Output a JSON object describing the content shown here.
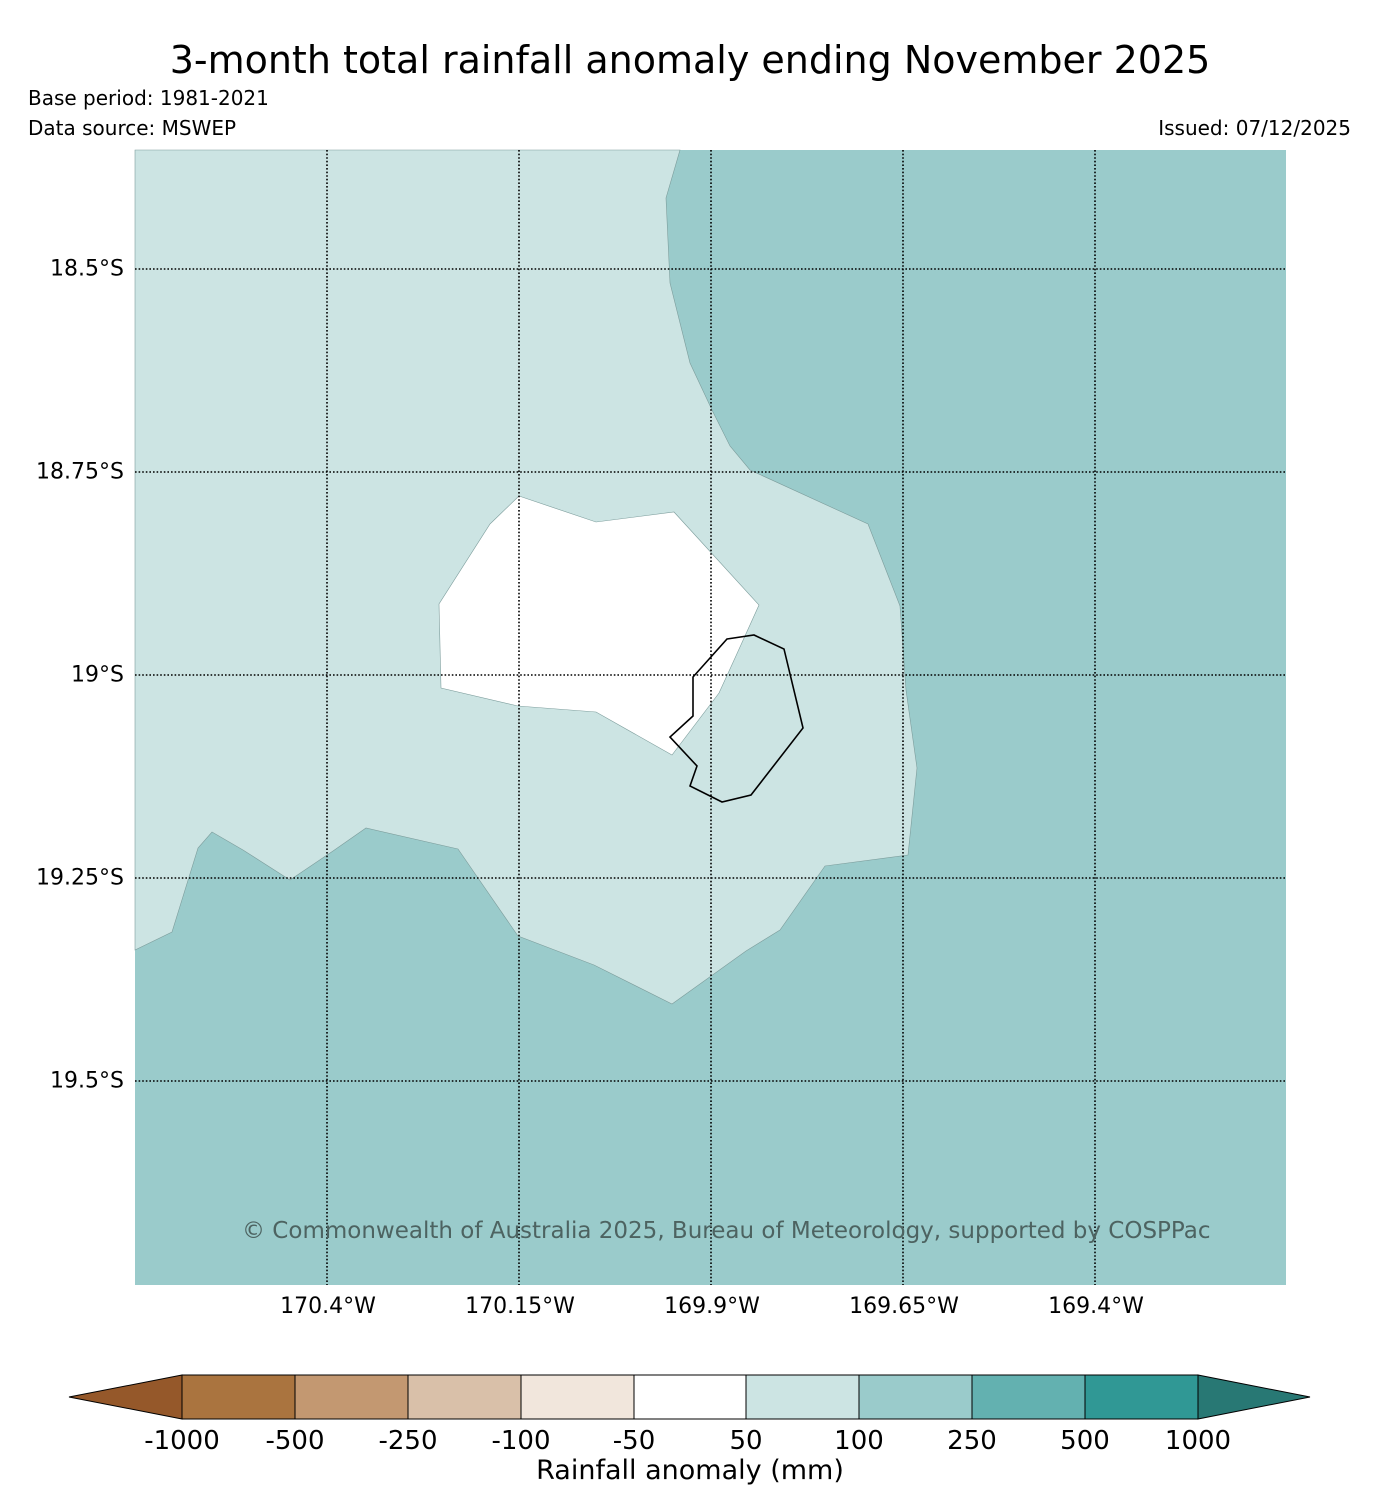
{
  "header": {
    "title": "3-month total rainfall anomaly ending November 2025",
    "base_period": "Base period: 1981-2021",
    "data_source": "Data source: MSWEP",
    "issued": "Issued: 07/12/2025"
  },
  "map": {
    "lat_labels": [
      "18.5°S",
      "18.75°S",
      "19°S",
      "19.25°S",
      "19.5°S"
    ],
    "lon_labels": [
      "170.4°W",
      "170.15°W",
      "169.9°W",
      "169.65°W",
      "169.4°W"
    ],
    "copyright": "© Commonwealth of Australia 2025, Bureau of Meteorology, supported by COSPPac",
    "fill_colors": {
      "band_50_100": "#cce4e3",
      "band_100_250": "#9acbcb",
      "band_neg50_50": "#ffffff"
    }
  },
  "colorbar": {
    "title": "Rainfall anomaly (mm)",
    "ticks": [
      "-1000",
      "-500",
      "-250",
      "-100",
      "-50",
      "50",
      "100",
      "250",
      "500",
      "1000"
    ],
    "colors": [
      "#95582a",
      "#aa743f",
      "#c39871",
      "#d9c0a9",
      "#f1e6dc",
      "#ffffff",
      "#cce4e3",
      "#9acbcb",
      "#63b1b0",
      "#309895",
      "#287874"
    ]
  }
}
